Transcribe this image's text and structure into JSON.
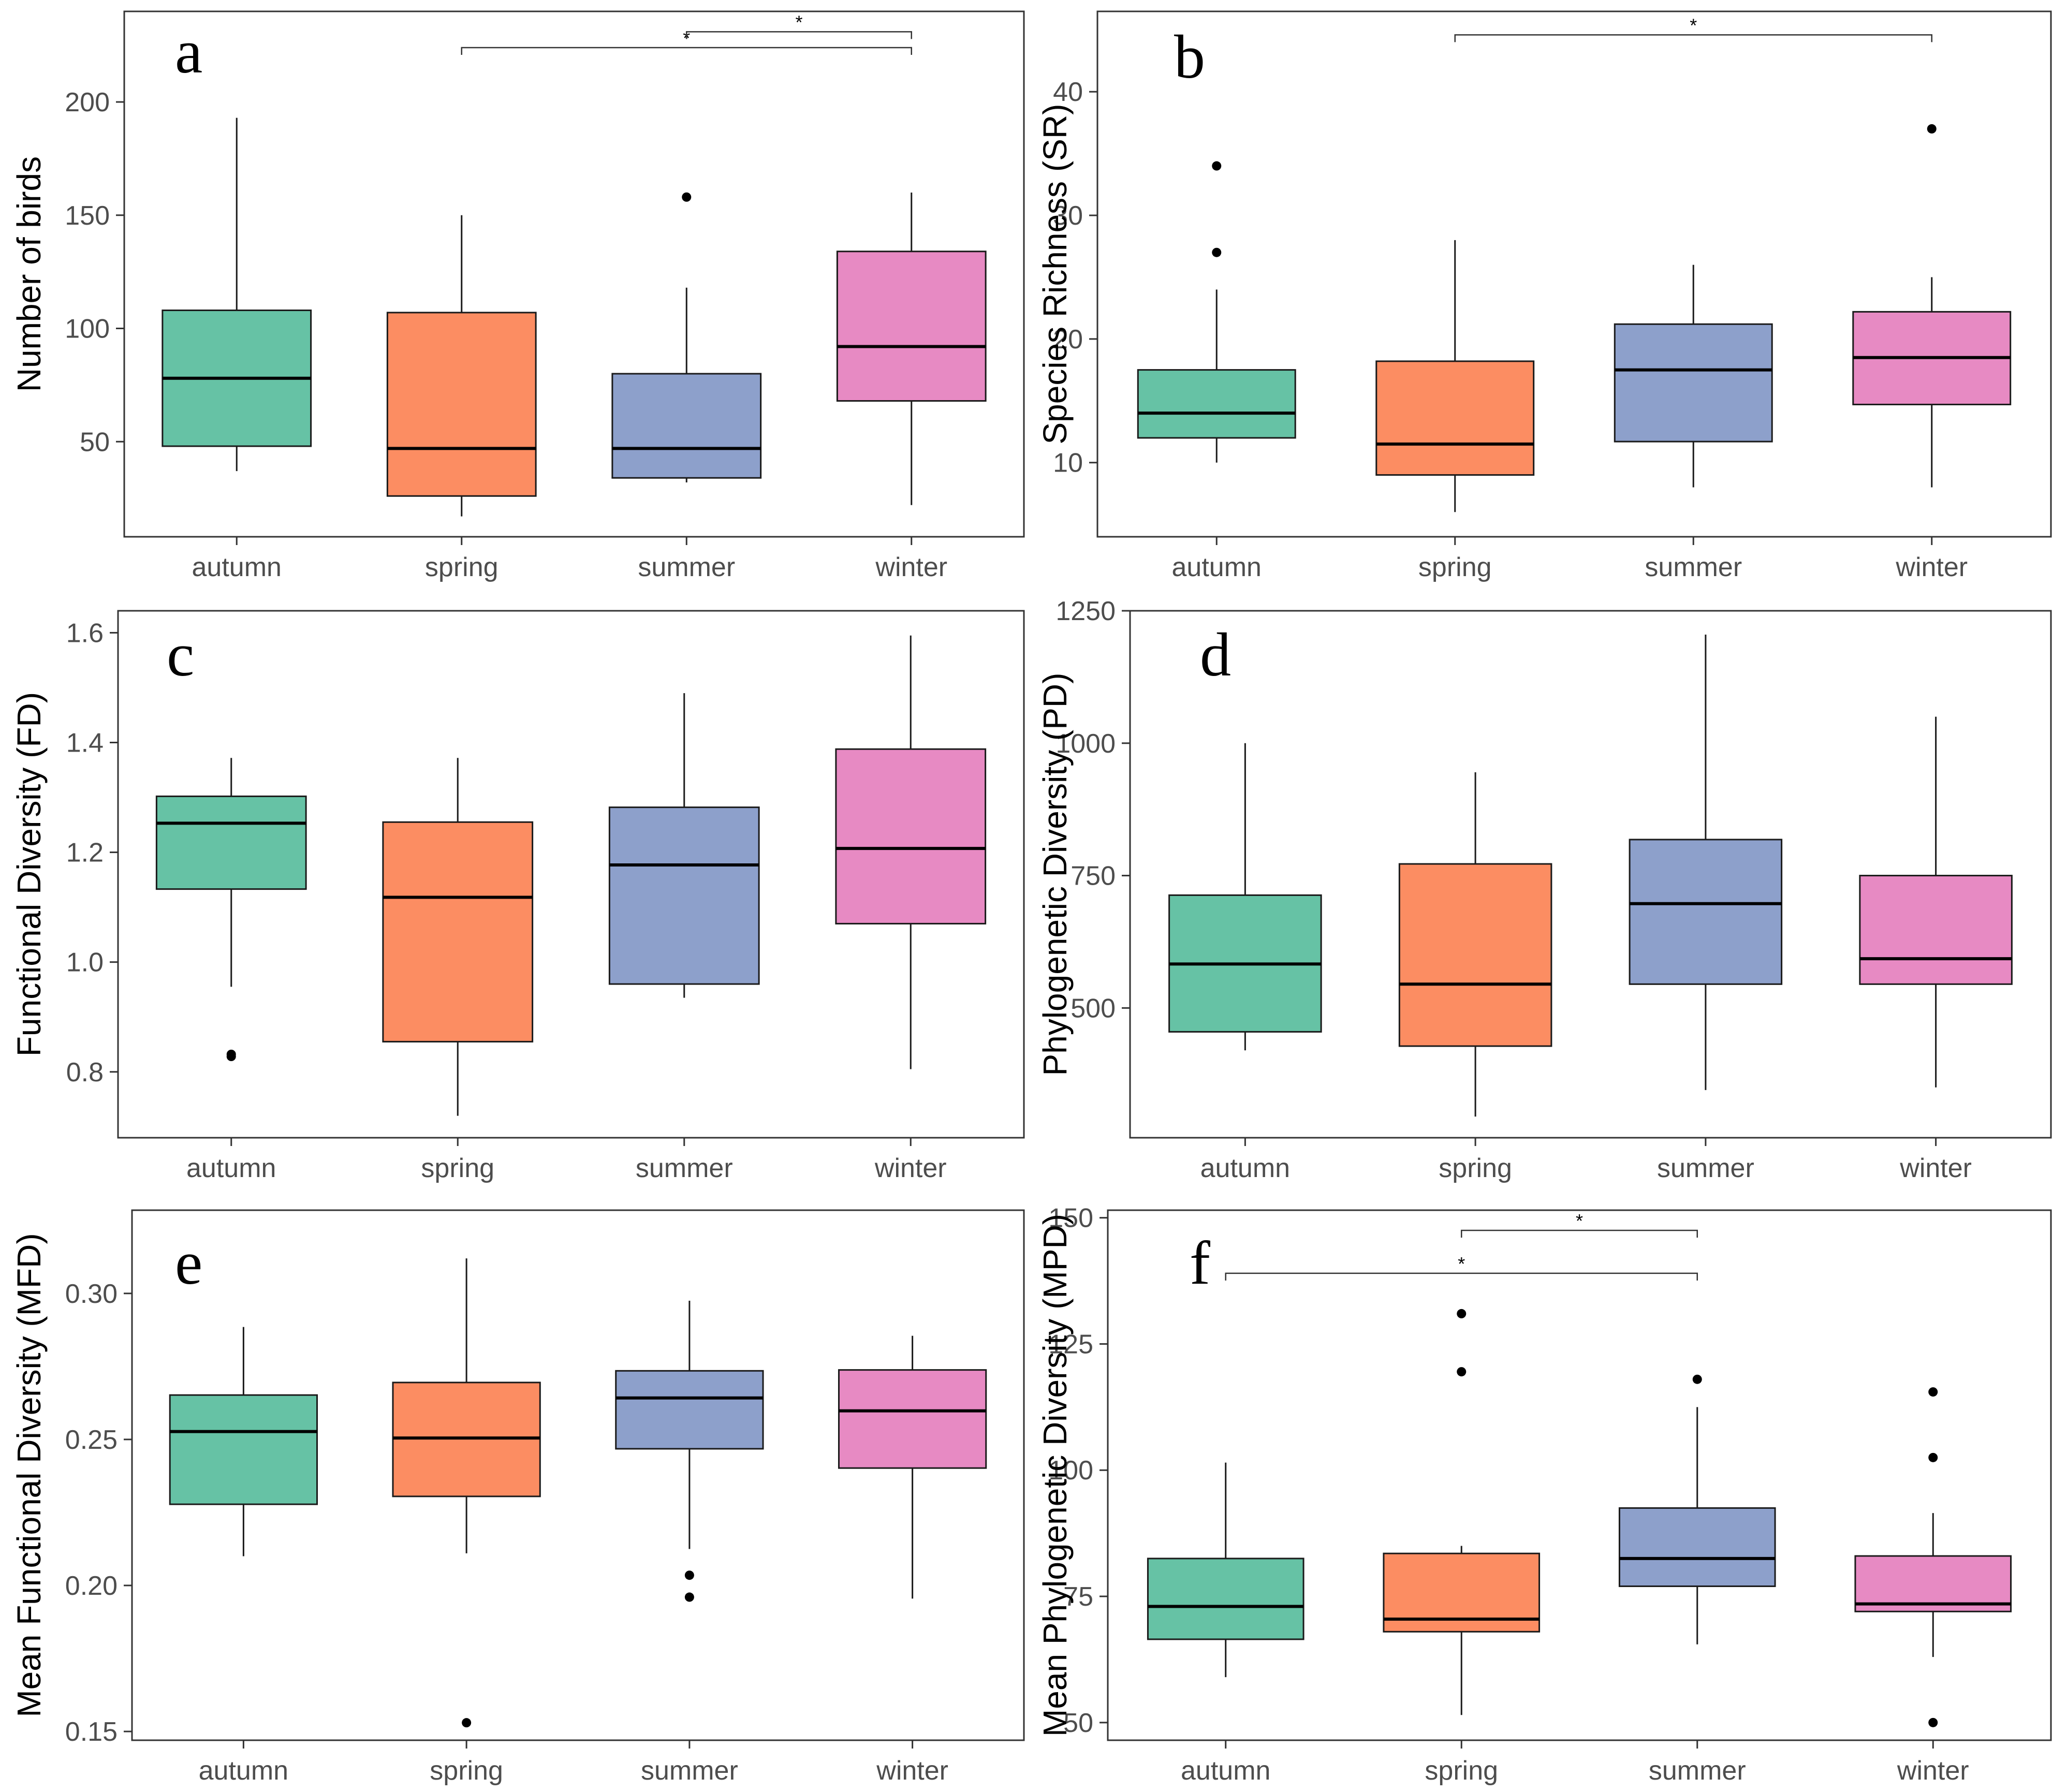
{
  "figure": {
    "categories": [
      "autumn",
      "spring",
      "summer",
      "winter"
    ],
    "colors": [
      "#66c2a5",
      "#fc8d62",
      "#8da0cb",
      "#e78ac3"
    ]
  },
  "chart_data": [
    {
      "type": "box",
      "panel": "a",
      "ylabel": "Number of birds",
      "ylim": [
        8,
        240
      ],
      "yticks": [
        50,
        100,
        150,
        200
      ],
      "categories": [
        "autumn",
        "spring",
        "summer",
        "winter"
      ],
      "boxes": [
        {
          "lower_whisker": 37,
          "q1": 48,
          "median": 78,
          "q3": 108,
          "upper_whisker": 193,
          "outliers": []
        },
        {
          "lower_whisker": 17,
          "q1": 26,
          "median": 47,
          "q3": 107,
          "upper_whisker": 150,
          "outliers": []
        },
        {
          "lower_whisker": 32,
          "q1": 34,
          "median": 47,
          "q3": 80,
          "upper_whisker": 118,
          "outliers": [
            158
          ]
        },
        {
          "lower_whisker": 22,
          "q1": 68,
          "median": 92,
          "q3": 134,
          "upper_whisker": 160,
          "outliers": []
        }
      ],
      "significance": [
        {
          "from": "spring",
          "to": "winter",
          "y": 224,
          "label": "*"
        },
        {
          "from": "summer",
          "to": "winter",
          "y": 231,
          "label": "*"
        }
      ]
    },
    {
      "type": "box",
      "panel": "b",
      "ylabel": "Species Richness (SR)",
      "ylim": [
        4,
        46.5
      ],
      "yticks": [
        10,
        20,
        30,
        40
      ],
      "categories": [
        "autumn",
        "spring",
        "summer",
        "winter"
      ],
      "boxes": [
        {
          "lower_whisker": 10,
          "q1": 12,
          "median": 14,
          "q3": 17.5,
          "upper_whisker": 24,
          "outliers": [
            27,
            34
          ]
        },
        {
          "lower_whisker": 6,
          "q1": 9,
          "median": 11.5,
          "q3": 18.2,
          "upper_whisker": 28,
          "outliers": []
        },
        {
          "lower_whisker": 8,
          "q1": 11.7,
          "median": 17.5,
          "q3": 21.2,
          "upper_whisker": 26,
          "outliers": []
        },
        {
          "lower_whisker": 8,
          "q1": 14.7,
          "median": 18.5,
          "q3": 22.2,
          "upper_whisker": 25,
          "outliers": [
            37
          ]
        }
      ],
      "significance": [
        {
          "from": "spring",
          "to": "winter",
          "y": 44.6,
          "label": "*"
        }
      ]
    },
    {
      "type": "box",
      "panel": "c",
      "ylabel": "Functional Diversity (FD)",
      "ylim": [
        0.68,
        1.64
      ],
      "yticks": [
        0.8,
        1.0,
        1.2,
        1.4,
        1.6
      ],
      "ytick_labels": [
        "0.8",
        "1.0",
        "1.2",
        "1.4",
        "1.6"
      ],
      "categories": [
        "autumn",
        "spring",
        "summer",
        "winter"
      ],
      "boxes": [
        {
          "lower_whisker": 0.955,
          "q1": 1.133,
          "median": 1.253,
          "q3": 1.302,
          "upper_whisker": 1.372,
          "outliers": [
            0.828,
            0.832
          ]
        },
        {
          "lower_whisker": 0.72,
          "q1": 0.855,
          "median": 1.118,
          "q3": 1.255,
          "upper_whisker": 1.372,
          "outliers": []
        },
        {
          "lower_whisker": 0.935,
          "q1": 0.96,
          "median": 1.177,
          "q3": 1.282,
          "upper_whisker": 1.49,
          "outliers": []
        },
        {
          "lower_whisker": 0.805,
          "q1": 1.07,
          "median": 1.207,
          "q3": 1.388,
          "upper_whisker": 1.595,
          "outliers": []
        }
      ],
      "significance": []
    },
    {
      "type": "box",
      "panel": "d",
      "ylabel": "Phylogenetic Diversity (PD)",
      "ylim": [
        255,
        1250
      ],
      "yticks": [
        500,
        750,
        1000,
        1250
      ],
      "categories": [
        "autumn",
        "spring",
        "summer",
        "winter"
      ],
      "boxes": [
        {
          "lower_whisker": 420,
          "q1": 455,
          "median": 583,
          "q3": 713,
          "upper_whisker": 1000,
          "outliers": []
        },
        {
          "lower_whisker": 295,
          "q1": 428,
          "median": 545,
          "q3": 772,
          "upper_whisker": 945,
          "outliers": []
        },
        {
          "lower_whisker": 345,
          "q1": 545,
          "median": 697,
          "q3": 818,
          "upper_whisker": 1205,
          "outliers": []
        },
        {
          "lower_whisker": 350,
          "q1": 545,
          "median": 593,
          "q3": 750,
          "upper_whisker": 1050,
          "outliers": []
        }
      ],
      "significance": []
    },
    {
      "type": "box",
      "panel": "e",
      "ylabel": "Mean Functional Diversity (MFD)",
      "ylim": [
        0.147,
        0.3285
      ],
      "yticks": [
        0.15,
        0.2,
        0.25,
        0.3
      ],
      "ytick_labels": [
        "0.15",
        "0.20",
        "0.25",
        "0.30"
      ],
      "categories": [
        "autumn",
        "spring",
        "summer",
        "winter"
      ],
      "boxes": [
        {
          "lower_whisker": 0.21,
          "q1": 0.2278,
          "median": 0.2527,
          "q3": 0.2652,
          "upper_whisker": 0.2885,
          "outliers": []
        },
        {
          "lower_whisker": 0.211,
          "q1": 0.2305,
          "median": 0.2505,
          "q3": 0.2695,
          "upper_whisker": 0.312,
          "outliers": [
            0.153
          ]
        },
        {
          "lower_whisker": 0.2125,
          "q1": 0.2468,
          "median": 0.2642,
          "q3": 0.2735,
          "upper_whisker": 0.2975,
          "outliers": [
            0.2035,
            0.196
          ]
        },
        {
          "lower_whisker": 0.1955,
          "q1": 0.2402,
          "median": 0.2598,
          "q3": 0.2738,
          "upper_whisker": 0.2855,
          "outliers": []
        }
      ],
      "significance": []
    },
    {
      "type": "box",
      "panel": "f",
      "ylabel": "Mean Phylogenetic Diversity (MPD)",
      "ylim": [
        46.5,
        151.5
      ],
      "yticks": [
        50,
        75,
        100,
        125,
        150
      ],
      "categories": [
        "autumn",
        "spring",
        "summer",
        "winter"
      ],
      "boxes": [
        {
          "lower_whisker": 59,
          "q1": 66.5,
          "median": 73,
          "q3": 82.5,
          "upper_whisker": 101.5,
          "outliers": []
        },
        {
          "lower_whisker": 51.5,
          "q1": 68,
          "median": 70.5,
          "q3": 83.5,
          "upper_whisker": 85,
          "outliers": [
            119.5,
            131
          ]
        },
        {
          "lower_whisker": 65.5,
          "q1": 77,
          "median": 82.5,
          "q3": 92.5,
          "upper_whisker": 112.5,
          "outliers": [
            118
          ]
        },
        {
          "lower_whisker": 63,
          "q1": 72,
          "median": 73.5,
          "q3": 83,
          "upper_whisker": 91.5,
          "outliers": [
            102.5,
            115.5,
            50
          ]
        }
      ],
      "significance": [
        {
          "from": "autumn",
          "to": "summer",
          "y": 139,
          "label": "*"
        },
        {
          "from": "spring",
          "to": "summer",
          "y": 147.5,
          "label": "*"
        }
      ]
    }
  ]
}
